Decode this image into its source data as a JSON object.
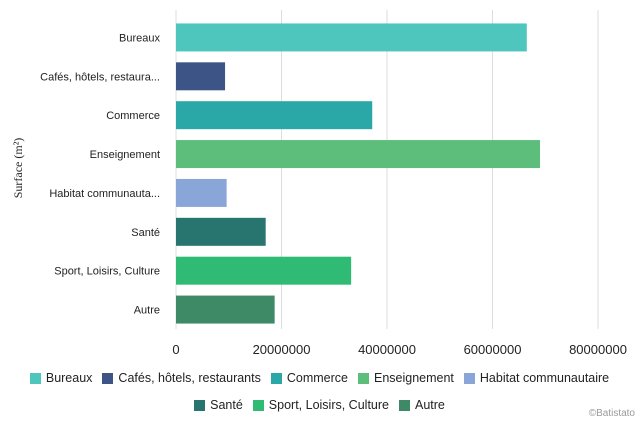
{
  "chart_data": {
    "type": "bar",
    "orientation": "horizontal",
    "ylabel": "Surface (m²)",
    "xlabel": "",
    "xlim": [
      0,
      80000000
    ],
    "x_ticks": [
      "0",
      "20000000",
      "40000000",
      "60000000",
      "80000000"
    ],
    "grid": true,
    "legend_position": "bottom",
    "categories": [
      "Bureaux",
      "Cafés, hôtels, restaura...",
      "Commerce",
      "Enseignement",
      "Habitat communauta...",
      "Santé",
      "Sport, Loisirs, Culture",
      "Autre"
    ],
    "values": [
      66500000,
      9300000,
      37200000,
      69000000,
      9600000,
      17000000,
      33200000,
      18700000
    ],
    "colors": [
      "#4fc6bd",
      "#3d5487",
      "#2aa7a7",
      "#5cbe7a",
      "#8aa5d8",
      "#28746e",
      "#2fbb74",
      "#3f8a66"
    ],
    "legend": [
      "Bureaux",
      "Cafés, hôtels, restaurants",
      "Commerce",
      "Enseignement",
      "Habitat communautaire",
      "Santé",
      "Sport, Loisirs, Culture",
      "Autre"
    ]
  },
  "credit": "©Batistato"
}
